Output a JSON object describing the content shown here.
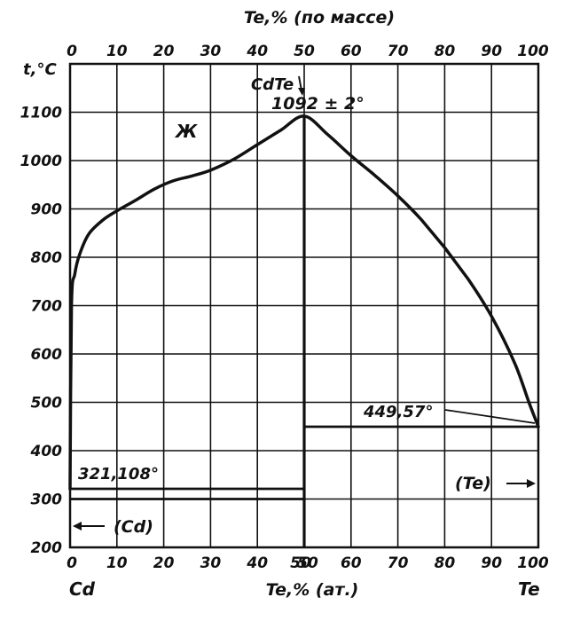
{
  "chart_data": {
    "type": "line",
    "title": "",
    "xlabel_bottom": "Te,% (ат.)",
    "xlabel_top": "Te,% (по массе)",
    "ylabel": "t,°C",
    "xlim": [
      0,
      100
    ],
    "ylim": [
      200,
      1200
    ],
    "grid": true,
    "bottom_ticks_left": [
      "0",
      "10",
      "20",
      "30",
      "40",
      "50"
    ],
    "bottom_ticks_right": [
      "50",
      "60",
      "70",
      "80",
      "90",
      "100"
    ],
    "top_ticks": [
      "0",
      "10",
      "20",
      "30",
      "40",
      "50",
      "60",
      "70",
      "80",
      "90",
      "100"
    ],
    "y_ticks": [
      "200",
      "300",
      "400",
      "500",
      "600",
      "700",
      "800",
      "900",
      "1000",
      "1100"
    ],
    "endpoint_left": "Cd",
    "endpoint_right": "Te",
    "compound": "CdTe",
    "compound_x": 50,
    "series": [
      {
        "points": [
          [
            0,
            321
          ],
          [
            0.3,
            700
          ],
          [
            1,
            765
          ],
          [
            2,
            805
          ],
          [
            4,
            848
          ],
          [
            7,
            877
          ],
          [
            10,
            896
          ],
          [
            14,
            918
          ],
          [
            18,
            941
          ],
          [
            22,
            958
          ],
          [
            26,
            968
          ],
          [
            30,
            980
          ],
          [
            35,
            1003
          ],
          [
            40,
            1033
          ],
          [
            45,
            1063
          ],
          [
            50,
            1092
          ],
          [
            55,
            1054
          ],
          [
            60,
            1010
          ],
          [
            65,
            970
          ],
          [
            70,
            927
          ],
          [
            75,
            878
          ],
          [
            80,
            820
          ],
          [
            85,
            755
          ],
          [
            90,
            678
          ],
          [
            95,
            580
          ],
          [
            98,
            500
          ],
          [
            100,
            449.57
          ]
        ]
      }
    ],
    "horizontal_lines": [
      {
        "x_from": 0,
        "x_to": 50,
        "y": 321.108
      },
      {
        "x_from": 0,
        "x_to": 50,
        "y": 300
      },
      {
        "x_from": 50,
        "x_to": 100,
        "y": 449.57
      }
    ],
    "vertical_lines": [
      {
        "x": 50,
        "y_from": 200,
        "y_to": 1092
      }
    ],
    "annotations": {
      "peak": "1092 ± 2°",
      "liquid": "Ж",
      "te_melting": "449,57°",
      "cd_eutectic": "321,108°",
      "cd_phase": "(Cd)",
      "te_phase": "(Te)"
    }
  }
}
